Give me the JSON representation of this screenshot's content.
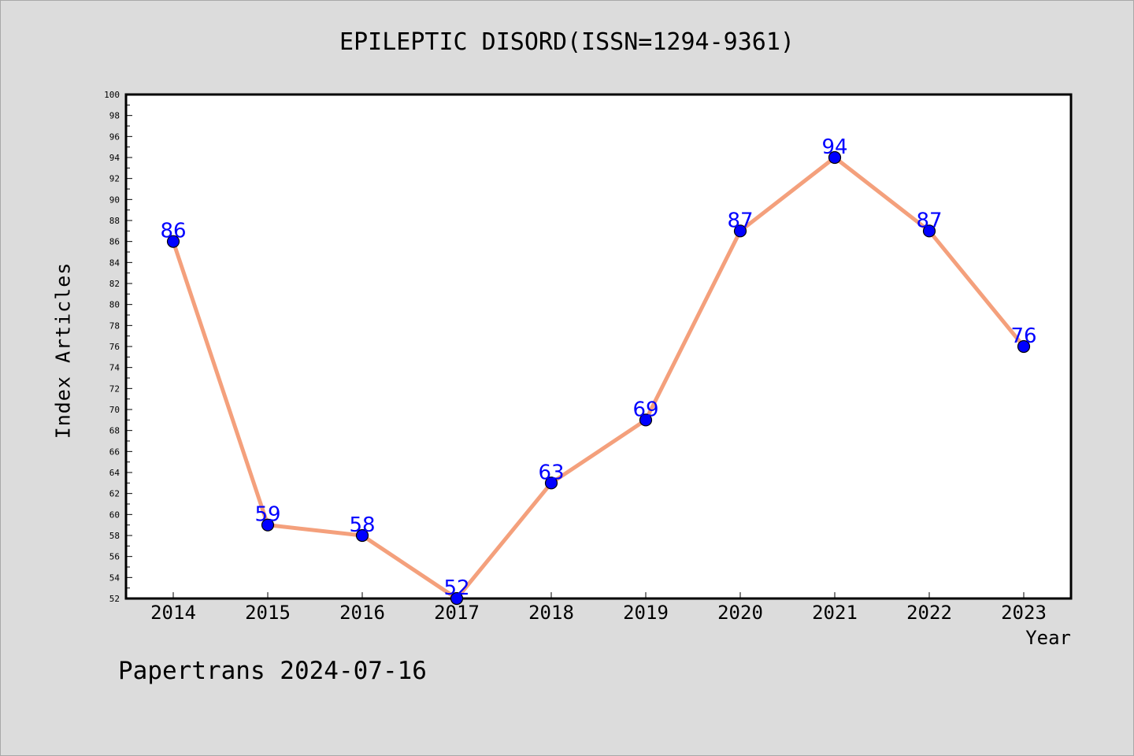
{
  "chart_data": {
    "type": "line",
    "title": "EPILEPTIC DISORD(ISSN=1294-9361)",
    "xlabel": "Year",
    "ylabel": "Index Articles",
    "categories": [
      "2014",
      "2015",
      "2016",
      "2017",
      "2018",
      "2019",
      "2020",
      "2021",
      "2022",
      "2023"
    ],
    "series": [
      {
        "values": [
          86,
          59,
          58,
          52,
          63,
          69,
          87,
          94,
          87,
          76
        ]
      }
    ],
    "data_labels": [
      "86",
      "59",
      "58",
      "52",
      "63",
      "69",
      "87",
      "94",
      "87",
      "76"
    ],
    "ylim": [
      52,
      100
    ],
    "y_ticks": [
      "52",
      "54",
      "56",
      "58",
      "60",
      "62",
      "64",
      "66",
      "68",
      "70",
      "72",
      "74",
      "76",
      "78",
      "80",
      "82",
      "84",
      "86",
      "88",
      "90",
      "92",
      "94",
      "96",
      "98",
      "100"
    ],
    "grid": false,
    "legend": "none",
    "colors": {
      "line": "#f4a07c",
      "marker": "#0000ff",
      "data_label": "#0000ff",
      "plot_background": "#ffffff",
      "page_background": "#dcdcdc"
    }
  },
  "footer": {
    "watermark": "Papertrans 2024-07-16"
  }
}
